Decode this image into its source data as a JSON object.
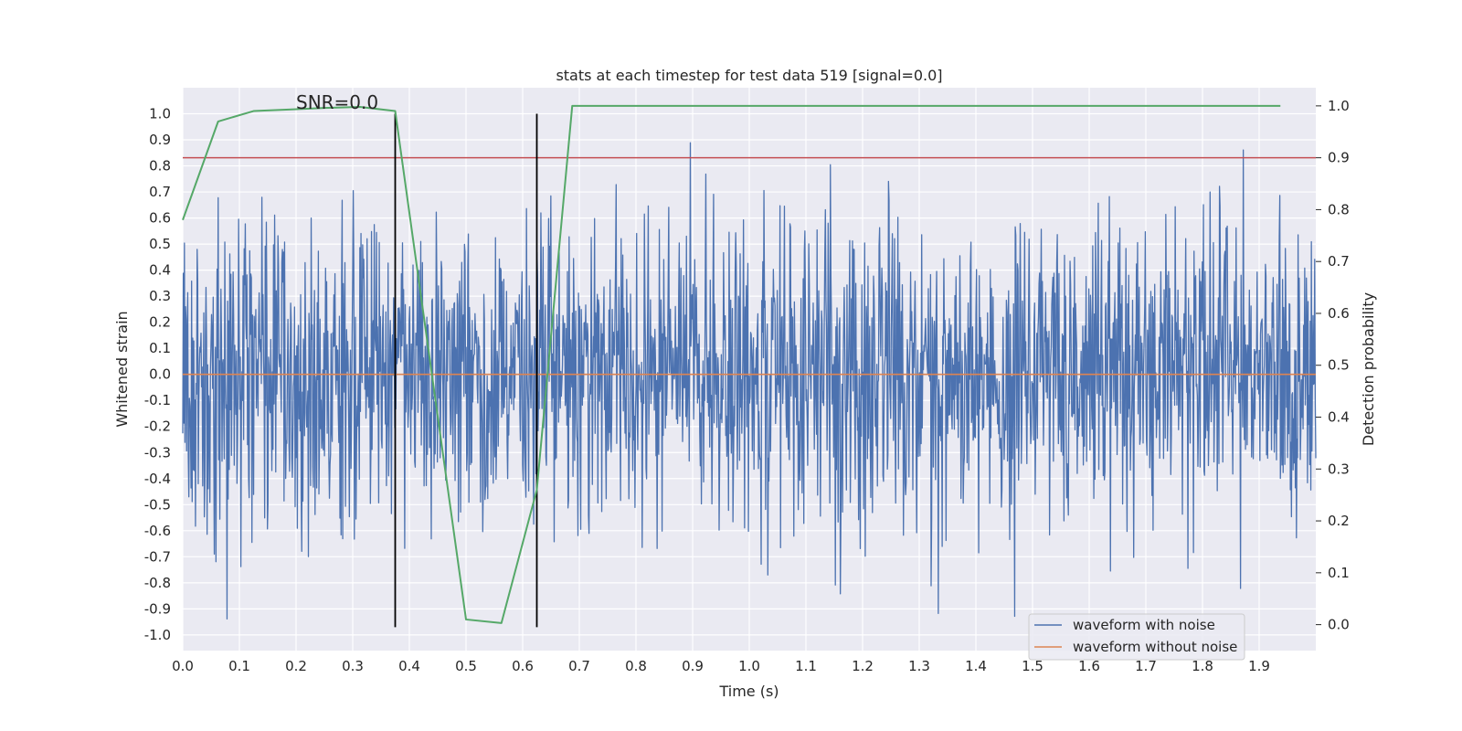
{
  "chart_data": {
    "type": "line",
    "title": "stats at each timestep for test data 519 [signal=0.0]",
    "xlabel": "Time (s)",
    "ylabel_left": "Whitened strain",
    "ylabel_right": "Detection probability",
    "xlim": [
      0.0,
      2.0
    ],
    "ylim_left": [
      -1.06,
      1.1
    ],
    "ylim_right": [
      -0.05,
      1.035
    ],
    "x_ticks": [
      0.0,
      0.1,
      0.2,
      0.3,
      0.4,
      0.5,
      0.6,
      0.7,
      0.8,
      0.9,
      1.0,
      1.1,
      1.2,
      1.3,
      1.4,
      1.5,
      1.6,
      1.7,
      1.8,
      1.9
    ],
    "x_tick_labels": [
      "0.0",
      "0.1",
      "0.2",
      "0.3",
      "0.4",
      "0.5",
      "0.6",
      "0.7",
      "0.8",
      "0.9",
      "1.0",
      "1.1",
      "1.2",
      "1.3",
      "1.4",
      "1.5",
      "1.6",
      "1.7",
      "1.8",
      "1.9"
    ],
    "y_left_ticks": [
      1.0,
      0.9,
      0.8,
      0.7,
      0.6,
      0.5,
      0.4,
      0.3,
      0.2,
      0.1,
      0.0,
      -0.1,
      -0.2,
      -0.3,
      -0.4,
      -0.5,
      -0.6,
      -0.7,
      -0.8,
      -0.9,
      -1.0
    ],
    "y_left_tick_labels": [
      "1.0",
      "0.9",
      "0.8",
      "0.7",
      "0.6",
      "0.5",
      "0.4",
      "0.3",
      "0.2",
      "0.1",
      "0.0",
      "-0.1",
      "-0.2",
      "-0.3",
      "-0.4",
      "-0.5",
      "-0.6",
      "-0.7",
      "-0.8",
      "-0.9",
      "-1.0"
    ],
    "y_right_ticks": [
      1.0,
      0.9,
      0.8,
      0.7,
      0.6,
      0.5,
      0.4,
      0.3,
      0.2,
      0.1,
      0.0
    ],
    "y_right_tick_labels": [
      "1.0",
      "0.9",
      "0.8",
      "0.7",
      "0.6",
      "0.5",
      "0.4",
      "0.3",
      "0.2",
      "0.1",
      "0.0"
    ],
    "annotation": "SNR=0.0",
    "annotation_x": 0.2,
    "annotation_y": 1.02,
    "threshold": {
      "axis": "right",
      "value": 0.9,
      "color": "#c44e52"
    },
    "vertical_markers": {
      "x": [
        0.375,
        0.625
      ],
      "ymin": -0.97,
      "ymax": 1.0,
      "color": "#000000"
    },
    "series": [
      {
        "name": "waveform with noise",
        "axis": "left",
        "color": "#4c72b0",
        "kind": "noise",
        "x_range": [
          0.0,
          2.0
        ],
        "n_points": 2048,
        "std": 0.29,
        "clip": [
          -0.97,
          1.0
        ],
        "seed": 519
      },
      {
        "name": "waveform without noise",
        "axis": "left",
        "color": "#dd8452",
        "x": [
          0.0,
          2.0
        ],
        "y": [
          0.0,
          0.0
        ]
      },
      {
        "name": "detection probability",
        "axis": "right",
        "color": "#55a868",
        "x": [
          0.0,
          0.0625,
          0.125,
          0.1875,
          0.25,
          0.3125,
          0.375,
          0.4375,
          0.5,
          0.5625,
          0.625,
          0.6875,
          0.75,
          0.8125,
          0.875,
          0.9375,
          1.0,
          1.0625,
          1.125,
          1.1875,
          1.25,
          1.3125,
          1.375,
          1.4375,
          1.5,
          1.5625,
          1.625,
          1.6875,
          1.75,
          1.8125,
          1.875,
          1.9375
        ],
        "y": [
          0.78,
          0.97,
          0.99,
          0.993,
          0.996,
          0.998,
          0.99,
          0.5,
          0.01,
          0.003,
          0.26,
          1.0,
          1.0,
          1.0,
          1.0,
          1.0,
          1.0,
          1.0,
          1.0,
          1.0,
          1.0,
          1.0,
          1.0,
          1.0,
          1.0,
          1.0,
          1.0,
          1.0,
          1.0,
          1.0,
          1.0,
          1.0
        ]
      }
    ],
    "legend": {
      "placement": "lower-right",
      "entries": [
        {
          "label": "waveform with noise",
          "color": "#4c72b0"
        },
        {
          "label": "waveform without noise",
          "color": "#dd8452"
        }
      ]
    },
    "style": {
      "plot_background": "#eaeaf2",
      "grid_color": "#ffffff",
      "grid": true
    }
  }
}
